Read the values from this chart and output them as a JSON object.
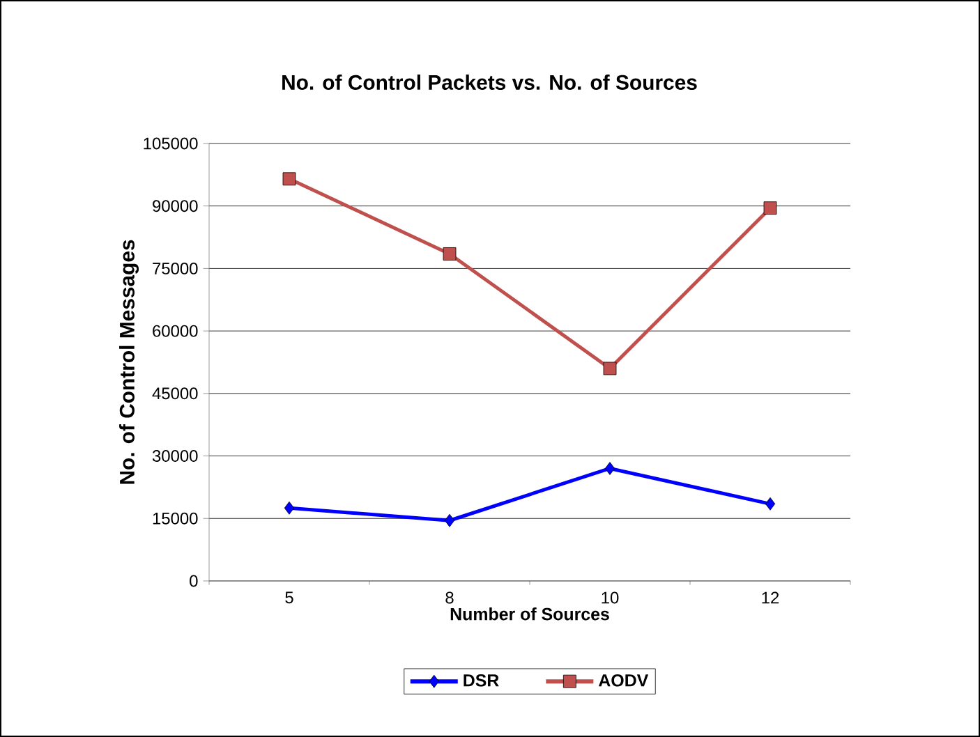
{
  "chart_data": {
    "type": "line",
    "title": "No. of Control Packets vs. No. of Sources",
    "xlabel": "Number of Sources",
    "ylabel": "No. of Control Messages",
    "categories": [
      "5",
      "8",
      "10",
      "12"
    ],
    "series": [
      {
        "name": "DSR",
        "color": "#0000ff",
        "values": [
          17500,
          14500,
          27000,
          18500
        ],
        "marker": "diamond"
      },
      {
        "name": "AODV",
        "color": "#c0504d",
        "values": [
          96500,
          78500,
          51000,
          89500
        ],
        "marker": "square"
      }
    ],
    "ylim": [
      0,
      105000
    ],
    "yticks": [
      0,
      15000,
      30000,
      45000,
      60000,
      75000,
      90000,
      105000
    ],
    "grid": "y",
    "legend": "bottom",
    "line_style": "solid"
  }
}
